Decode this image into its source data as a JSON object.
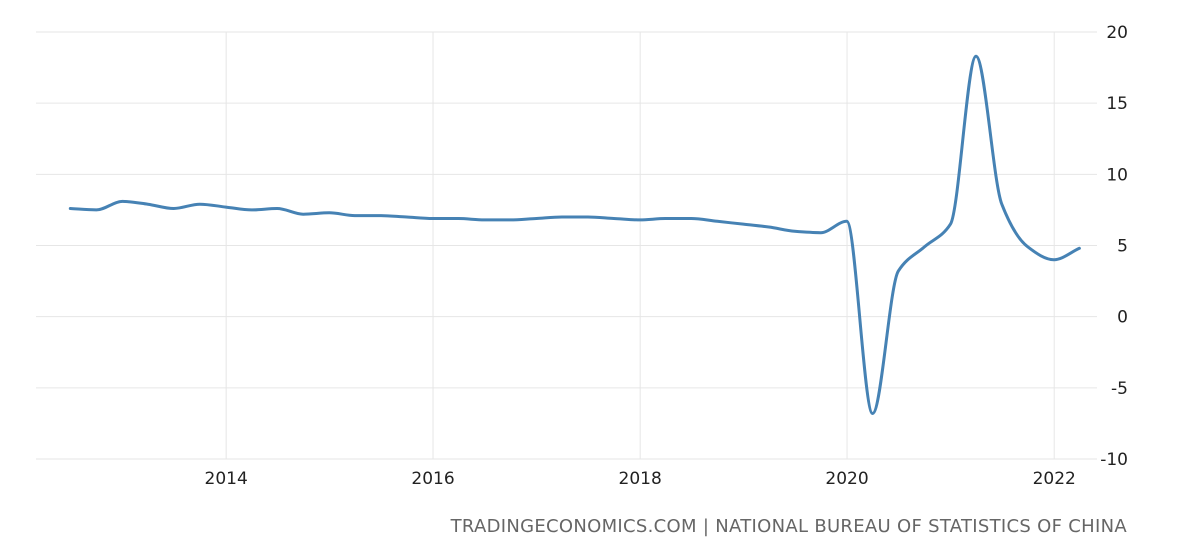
{
  "source_credit": "TRADINGECONOMICS.COM | NATIONAL BUREAU OF STATISTICS OF CHINA",
  "chart_data": {
    "type": "line",
    "title": "",
    "xlabel": "",
    "ylabel": "",
    "x_ticks": [
      "2014",
      "2016",
      "2018",
      "2020",
      "2022"
    ],
    "y_ticks": [
      "20",
      "15",
      "10",
      "5",
      "0",
      "-5",
      "-10"
    ],
    "xlim": [
      "2012-03-01",
      "2022-06-01"
    ],
    "ylim": [
      -10,
      20
    ],
    "grid": true,
    "y_axis_position": "right",
    "line_color": "#4682b4",
    "x": [
      "2012-06-30",
      "2012-09-30",
      "2012-12-31",
      "2013-03-31",
      "2013-06-30",
      "2013-09-30",
      "2013-12-31",
      "2014-03-31",
      "2014-06-30",
      "2014-09-30",
      "2014-12-31",
      "2015-03-31",
      "2015-06-30",
      "2015-09-30",
      "2015-12-31",
      "2016-03-31",
      "2016-06-30",
      "2016-09-30",
      "2016-12-31",
      "2017-03-31",
      "2017-06-30",
      "2017-09-30",
      "2017-12-31",
      "2018-03-31",
      "2018-06-30",
      "2018-09-30",
      "2018-12-31",
      "2019-03-31",
      "2019-06-30",
      "2019-09-30",
      "2019-12-31",
      "2020-03-31",
      "2020-06-30",
      "2020-09-30",
      "2020-12-31",
      "2021-03-31",
      "2021-06-30",
      "2021-09-30",
      "2021-12-31",
      "2022-03-31"
    ],
    "series": [
      {
        "values": [
          7.6,
          7.5,
          8.1,
          7.9,
          7.6,
          7.9,
          7.7,
          7.5,
          7.6,
          7.2,
          7.3,
          7.1,
          7.1,
          7.0,
          6.9,
          6.9,
          6.8,
          6.8,
          6.9,
          7.0,
          7.0,
          6.9,
          6.8,
          6.9,
          6.9,
          6.7,
          6.5,
          6.3,
          6.0,
          5.9,
          6.7,
          -6.8,
          3.2,
          4.9,
          6.5,
          18.3,
          7.9,
          4.9,
          4.0,
          4.8
        ]
      }
    ]
  }
}
